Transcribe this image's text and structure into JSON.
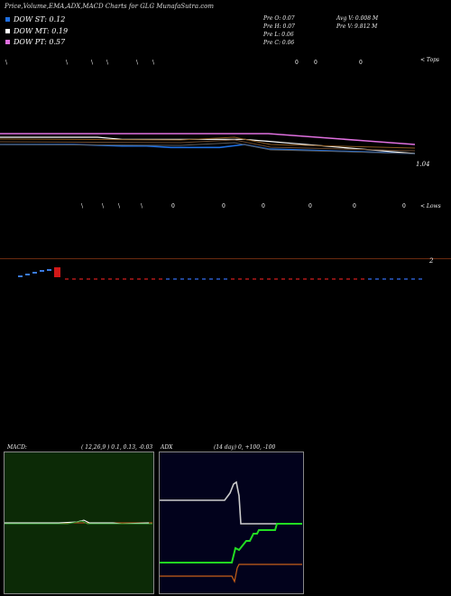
{
  "header": {
    "title": "Price,Volume,EMA,ADX,MACD Charts for GLG MunafaSutra.com"
  },
  "legend": [
    {
      "label": "DOW ST: 0.12",
      "color": "#1f6fe0"
    },
    {
      "label": "DOW MT: 0.19",
      "color": "#ffffff"
    },
    {
      "label": "DOW PT: 0.57",
      "color": "#e070e0"
    }
  ],
  "price_info": {
    "col1": [
      "Pre  O: 0.07",
      "Pre  H: 0.07",
      "Pre  L: 0.06",
      "Pre  C: 0.06"
    ],
    "col2": [
      "Avg V: 0.008  M",
      "Pre  V: 9.812  M"
    ]
  },
  "labels": {
    "tops": "< Tops",
    "lows": "< Lows",
    "price_level": "1.04",
    "volume_level": "2"
  },
  "markers": {
    "tops_row": [
      "\\",
      "\\",
      "\\",
      "\\",
      "\\",
      "\\",
      "0",
      "0",
      "0"
    ],
    "lows_row": [
      "\\",
      "\\",
      "\\",
      "\\",
      "0",
      "0",
      "0",
      "0",
      "0",
      "0"
    ]
  },
  "macd_panel": {
    "label": "MACD:",
    "params": "( 12,26,9 ) 0.1,  0.13,  -0.03",
    "background": "#0c2a06"
  },
  "adx_panel": {
    "label": "ADX",
    "params": "(14  day) 0,  +100,  -100",
    "background": "#02021c"
  },
  "chart_data": {
    "type": "line",
    "title": "Price,Volume,EMA,ADX,MACD Charts for GLG MunafaSutra.com",
    "price_series": [
      {
        "name": "DOW ST",
        "color": "#1f6fe0",
        "values": [
          0.12,
          0.12,
          0.12,
          0.12,
          0.115,
          0.11,
          0.11,
          0.1,
          0.1,
          0.1,
          0.12,
          0.09,
          0.085,
          0.08,
          0.075,
          0.07,
          0.065,
          0.06
        ]
      },
      {
        "name": "DOW MT",
        "color": "#ffffff",
        "values": [
          0.2,
          0.2,
          0.2,
          0.2,
          0.2,
          0.19,
          0.19,
          0.19,
          0.19,
          0.19,
          0.19,
          0.18,
          0.17,
          0.16,
          0.15,
          0.14,
          0.13,
          0.12
        ]
      },
      {
        "name": "DOW PT",
        "color": "#e070e0",
        "values": [
          0.57,
          0.57,
          0.57,
          0.57,
          0.57,
          0.57,
          0.57,
          0.57,
          0.57,
          0.57,
          0.57,
          0.57,
          0.56,
          0.55,
          0.54,
          0.53,
          0.52,
          0.51
        ]
      }
    ],
    "macd": {
      "fast": 12,
      "slow": 26,
      "signal": 9,
      "macd": 0.1,
      "signal_value": 0.13,
      "histogram": -0.03
    },
    "adx": {
      "period": 14,
      "adx": 0,
      "plus_di": 100,
      "minus_di": -100
    }
  }
}
